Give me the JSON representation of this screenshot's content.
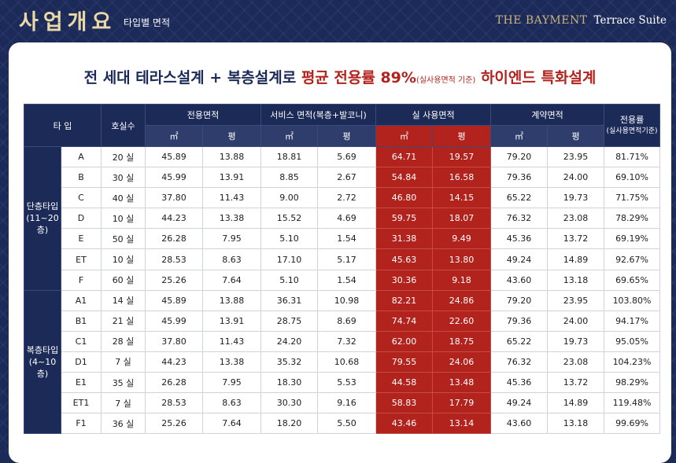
{
  "header": {
    "title": "사업개요",
    "subtitle": "타입별 면적",
    "brand_name": "THE BAYMENT",
    "brand_sub": "Terrace Suite"
  },
  "headline": {
    "part1": "전 세대 테라스설계 + 복층설계로 ",
    "part2": "평균 전용률 89%",
    "part3": "(실사용면적 기준)",
    "part4": " 하이엔드 특화설계"
  },
  "table": {
    "headers": {
      "type": "타 입",
      "units": "호실수",
      "exclusive": "전용면적",
      "service": "서비스 면적(복층+발코니)",
      "actual": "실 사용면적",
      "contract": "계약면적",
      "rate": "전용률",
      "rate_sub": "(실사용면적기준)",
      "sqm": "㎡",
      "pyeong": "평"
    },
    "groups": [
      {
        "label_line1": "단층타입",
        "label_line2": "(11~20층)",
        "rows": [
          {
            "type": "A",
            "units": "20 실",
            "ex_m2": "45.89",
            "ex_py": "13.88",
            "sv_m2": "18.81",
            "sv_py": "5.69",
            "ac_m2": "64.71",
            "ac_py": "19.57",
            "ct_m2": "79.20",
            "ct_py": "23.95",
            "rate": "81.71%"
          },
          {
            "type": "B",
            "units": "30 실",
            "ex_m2": "45.99",
            "ex_py": "13.91",
            "sv_m2": "8.85",
            "sv_py": "2.67",
            "ac_m2": "54.84",
            "ac_py": "16.58",
            "ct_m2": "79.36",
            "ct_py": "24.00",
            "rate": "69.10%"
          },
          {
            "type": "C",
            "units": "40 실",
            "ex_m2": "37.80",
            "ex_py": "11.43",
            "sv_m2": "9.00",
            "sv_py": "2.72",
            "ac_m2": "46.80",
            "ac_py": "14.15",
            "ct_m2": "65.22",
            "ct_py": "19.73",
            "rate": "71.75%"
          },
          {
            "type": "D",
            "units": "10 실",
            "ex_m2": "44.23",
            "ex_py": "13.38",
            "sv_m2": "15.52",
            "sv_py": "4.69",
            "ac_m2": "59.75",
            "ac_py": "18.07",
            "ct_m2": "76.32",
            "ct_py": "23.08",
            "rate": "78.29%"
          },
          {
            "type": "E",
            "units": "50 실",
            "ex_m2": "26.28",
            "ex_py": "7.95",
            "sv_m2": "5.10",
            "sv_py": "1.54",
            "ac_m2": "31.38",
            "ac_py": "9.49",
            "ct_m2": "45.36",
            "ct_py": "13.72",
            "rate": "69.19%"
          },
          {
            "type": "ET",
            "units": "10 실",
            "ex_m2": "28.53",
            "ex_py": "8.63",
            "sv_m2": "17.10",
            "sv_py": "5.17",
            "ac_m2": "45.63",
            "ac_py": "13.80",
            "ct_m2": "49.24",
            "ct_py": "14.89",
            "rate": "92.67%"
          },
          {
            "type": "F",
            "units": "60 실",
            "ex_m2": "25.26",
            "ex_py": "7.64",
            "sv_m2": "5.10",
            "sv_py": "1.54",
            "ac_m2": "30.36",
            "ac_py": "9.18",
            "ct_m2": "43.60",
            "ct_py": "13.18",
            "rate": "69.65%"
          }
        ]
      },
      {
        "label_line1": "복층타입",
        "label_line2": "(4~10층)",
        "rows": [
          {
            "type": "A1",
            "units": "14 실",
            "ex_m2": "45.89",
            "ex_py": "13.88",
            "sv_m2": "36.31",
            "sv_py": "10.98",
            "ac_m2": "82.21",
            "ac_py": "24.86",
            "ct_m2": "79.20",
            "ct_py": "23.95",
            "rate": "103.80%"
          },
          {
            "type": "B1",
            "units": "21 실",
            "ex_m2": "45.99",
            "ex_py": "13.91",
            "sv_m2": "28.75",
            "sv_py": "8.69",
            "ac_m2": "74.74",
            "ac_py": "22.60",
            "ct_m2": "79.36",
            "ct_py": "24.00",
            "rate": "94.17%"
          },
          {
            "type": "C1",
            "units": "28 실",
            "ex_m2": "37.80",
            "ex_py": "11.43",
            "sv_m2": "24.20",
            "sv_py": "7.32",
            "ac_m2": "62.00",
            "ac_py": "18.75",
            "ct_m2": "65.22",
            "ct_py": "19.73",
            "rate": "95.05%"
          },
          {
            "type": "D1",
            "units": "7 실",
            "ex_m2": "44.23",
            "ex_py": "13.38",
            "sv_m2": "35.32",
            "sv_py": "10.68",
            "ac_m2": "79.55",
            "ac_py": "24.06",
            "ct_m2": "76.32",
            "ct_py": "23.08",
            "rate": "104.23%"
          },
          {
            "type": "E1",
            "units": "35 실",
            "ex_m2": "26.28",
            "ex_py": "7.95",
            "sv_m2": "18.30",
            "sv_py": "5.53",
            "ac_m2": "44.58",
            "ac_py": "13.48",
            "ct_m2": "45.36",
            "ct_py": "13.72",
            "rate": "98.29%"
          },
          {
            "type": "ET1",
            "units": "7 실",
            "ex_m2": "28.53",
            "ex_py": "8.63",
            "sv_m2": "30.30",
            "sv_py": "9.16",
            "ac_m2": "58.83",
            "ac_py": "17.79",
            "ct_m2": "49.24",
            "ct_py": "14.89",
            "rate": "119.48%"
          },
          {
            "type": "F1",
            "units": "36 실",
            "ex_m2": "25.26",
            "ex_py": "7.64",
            "sv_m2": "18.20",
            "sv_py": "5.50",
            "ac_m2": "43.46",
            "ac_py": "13.14",
            "ct_m2": "43.60",
            "ct_py": "13.18",
            "rate": "99.69%"
          }
        ]
      }
    ]
  }
}
